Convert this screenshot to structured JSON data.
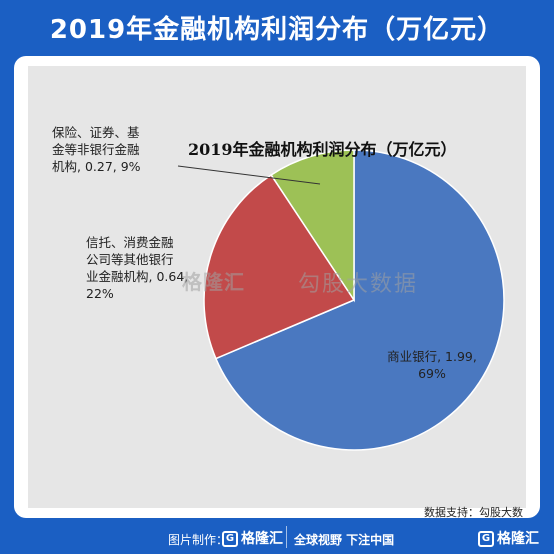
{
  "header": {
    "title": "2019年金融机构利润分布（万亿元）"
  },
  "chart_data": {
    "type": "pie",
    "title": "2019年金融机构利润分布（万亿元）",
    "slices": [
      {
        "name": "商业银行",
        "value": 1.99,
        "percent": 69,
        "color": "#4a78c0",
        "label_lines": [
          "商业银行, 1.99,",
          "69%"
        ]
      },
      {
        "name": "信托、消费金融公司等其他银行业金融机构",
        "value": 0.64,
        "percent": 22,
        "color": "#c24a4a",
        "label_lines": [
          "信托、消费金融",
          "公司等其他银行",
          "业金融机构, 0.64,",
          "22%"
        ]
      },
      {
        "name": "保险、证券、基金等非银行金融机构",
        "value": 0.27,
        "percent": 9,
        "color": "#9dc156",
        "label_lines": [
          "保险、证券、基",
          "金等非银行金融",
          "机构, 0.27, 9%"
        ]
      }
    ]
  },
  "watermark": {
    "brand": "格隆汇",
    "sub": "勾股大数据"
  },
  "source": "数据支持：勾股大数据",
  "footer": {
    "made_by": "图片制作：",
    "logo_text": "格隆汇",
    "slogan": "全球视野 下注中国",
    "logo_right": "格隆汇"
  }
}
